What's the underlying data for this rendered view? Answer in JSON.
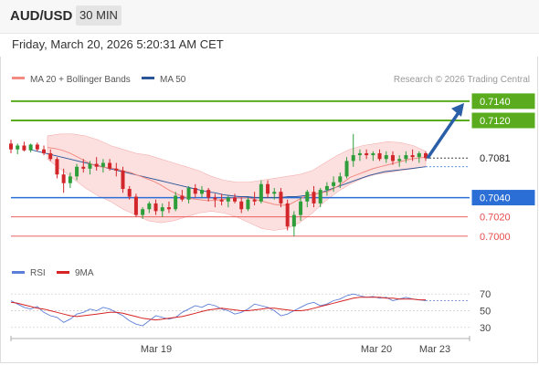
{
  "header": {
    "symbol": "AUD/USD",
    "timeframe": "30 MIN",
    "datetime": "Friday, March 20, 2026 5:20:31 AM CET"
  },
  "legend": {
    "ma20_label": "MA 20 + Bollinger Bands",
    "ma50_label": "MA 50",
    "ma20_color": "#f28b82",
    "ma50_color": "#2a5599",
    "credit": "Research © 2026 Trading Central"
  },
  "chart_data": [
    {
      "type": "candlestick",
      "title": "",
      "y_range": [
        0.698,
        0.7155
      ],
      "x_ticks": [
        "Mar 19",
        "Mar 20",
        "Mar 23"
      ],
      "levels": [
        {
          "value": "0.7140",
          "color": "#5aab1e",
          "kind": "resistance"
        },
        {
          "value": "0.7120",
          "color": "#5aab1e",
          "kind": "resistance"
        },
        {
          "value": "0.7081",
          "color": "#222222",
          "kind": "last"
        },
        {
          "value": "0.7040",
          "color": "#2b6fd6",
          "kind": "pivot"
        },
        {
          "value": "0.7020",
          "color": "#e84c4c",
          "kind": "support"
        },
        {
          "value": "0.7000",
          "color": "#e84c4c",
          "kind": "support"
        }
      ],
      "candles": [
        [
          0.7096,
          0.71,
          0.7086,
          0.709
        ],
        [
          0.709,
          0.7096,
          0.7085,
          0.7094
        ],
        [
          0.7094,
          0.7098,
          0.7088,
          0.7089
        ],
        [
          0.7089,
          0.7096,
          0.7087,
          0.7095
        ],
        [
          0.7095,
          0.7097,
          0.7088,
          0.709
        ],
        [
          0.709,
          0.7094,
          0.7084,
          0.7086
        ],
        [
          0.7086,
          0.709,
          0.7078,
          0.708
        ],
        [
          0.708,
          0.7082,
          0.706,
          0.7064
        ],
        [
          0.7064,
          0.707,
          0.7045,
          0.7055
        ],
        [
          0.7055,
          0.7066,
          0.705,
          0.7062
        ],
        [
          0.7062,
          0.7075,
          0.7058,
          0.7072
        ],
        [
          0.7072,
          0.708,
          0.7066,
          0.707
        ],
        [
          0.707,
          0.7078,
          0.7064,
          0.7075
        ],
        [
          0.7075,
          0.7082,
          0.7068,
          0.7072
        ],
        [
          0.7072,
          0.708,
          0.7066,
          0.7076
        ],
        [
          0.7076,
          0.708,
          0.7068,
          0.707
        ],
        [
          0.707,
          0.7076,
          0.7062,
          0.7068
        ],
        [
          0.7068,
          0.7072,
          0.7045,
          0.7049
        ],
        [
          0.7049,
          0.7052,
          0.7038,
          0.7041
        ],
        [
          0.7041,
          0.7044,
          0.702,
          0.7022
        ],
        [
          0.7022,
          0.703,
          0.7018,
          0.7028
        ],
        [
          0.7028,
          0.7036,
          0.7024,
          0.7034
        ],
        [
          0.7034,
          0.7038,
          0.7022,
          0.7026
        ],
        [
          0.7026,
          0.7034,
          0.702,
          0.703
        ],
        [
          0.703,
          0.7036,
          0.7024,
          0.7028
        ],
        [
          0.7028,
          0.7046,
          0.7026,
          0.7042
        ],
        [
          0.7042,
          0.7048,
          0.7036,
          0.7038
        ],
        [
          0.7038,
          0.7052,
          0.7034,
          0.705
        ],
        [
          0.705,
          0.7054,
          0.704,
          0.7044
        ],
        [
          0.7044,
          0.7052,
          0.704,
          0.7048
        ],
        [
          0.7048,
          0.705,
          0.7036,
          0.704
        ],
        [
          0.704,
          0.7044,
          0.703,
          0.7038
        ],
        [
          0.7038,
          0.7044,
          0.7032,
          0.7036
        ],
        [
          0.7036,
          0.7042,
          0.703,
          0.704
        ],
        [
          0.704,
          0.7044,
          0.7034,
          0.7036
        ],
        [
          0.7036,
          0.704,
          0.7024,
          0.7028
        ],
        [
          0.7028,
          0.704,
          0.7026,
          0.7038
        ],
        [
          0.7038,
          0.7046,
          0.7032,
          0.7036
        ],
        [
          0.7036,
          0.7058,
          0.7034,
          0.7054
        ],
        [
          0.7054,
          0.7058,
          0.704,
          0.7044
        ],
        [
          0.7044,
          0.705,
          0.7038,
          0.7046
        ],
        [
          0.7046,
          0.705,
          0.703,
          0.7034
        ],
        [
          0.7034,
          0.7038,
          0.7006,
          0.701
        ],
        [
          0.701,
          0.7026,
          0.7,
          0.7022
        ],
        [
          0.7022,
          0.704,
          0.7016,
          0.7036
        ],
        [
          0.7036,
          0.7048,
          0.703,
          0.7046
        ],
        [
          0.7046,
          0.7052,
          0.703,
          0.7034
        ],
        [
          0.7034,
          0.705,
          0.703,
          0.7048
        ],
        [
          0.7048,
          0.7056,
          0.7042,
          0.7052
        ],
        [
          0.7052,
          0.7062,
          0.7046,
          0.7056
        ],
        [
          0.7056,
          0.7066,
          0.705,
          0.7062
        ],
        [
          0.7062,
          0.7082,
          0.706,
          0.7078
        ],
        [
          0.7078,
          0.7106,
          0.7072,
          0.7084
        ],
        [
          0.7084,
          0.709,
          0.7078,
          0.7086
        ],
        [
          0.7086,
          0.709,
          0.708,
          0.7084
        ],
        [
          0.7084,
          0.7088,
          0.7078,
          0.7086
        ],
        [
          0.7086,
          0.709,
          0.7078,
          0.708
        ],
        [
          0.708,
          0.7088,
          0.7076,
          0.7084
        ],
        [
          0.7084,
          0.7088,
          0.7074,
          0.7078
        ],
        [
          0.7078,
          0.7084,
          0.7072,
          0.708
        ],
        [
          0.708,
          0.7088,
          0.7076,
          0.7084
        ],
        [
          0.7084,
          0.709,
          0.7078,
          0.7082
        ],
        [
          0.7082,
          0.7088,
          0.7076,
          0.7086
        ],
        [
          0.7086,
          0.7088,
          0.7078,
          0.7081
        ]
      ],
      "ma20": [
        0.7092,
        0.7091,
        0.7089,
        0.7086,
        0.7082,
        0.7078,
        0.7074,
        0.7072,
        0.7071,
        0.707,
        0.7068,
        0.7066,
        0.7063,
        0.706,
        0.7057,
        0.7053,
        0.7048,
        0.7044,
        0.7041,
        0.7039,
        0.7038,
        0.7037,
        0.7037,
        0.7038,
        0.7039,
        0.704,
        0.704,
        0.7039,
        0.7037,
        0.7035,
        0.7033,
        0.7032,
        0.7033,
        0.7037,
        0.7041,
        0.7043,
        0.7045,
        0.7046,
        0.705,
        0.7055,
        0.7061,
        0.7064,
        0.7067,
        0.707,
        0.7072,
        0.7074,
        0.7076,
        0.7078,
        0.708,
        0.7081,
        0.7082
      ],
      "ma50": [
        0.709,
        0.7088,
        0.7086,
        0.7084,
        0.7082,
        0.708,
        0.7078,
        0.7076,
        0.7074,
        0.7072,
        0.707,
        0.7068,
        0.7066,
        0.7064,
        0.7062,
        0.706,
        0.7058,
        0.7056,
        0.7054,
        0.7052,
        0.705,
        0.7048,
        0.7046,
        0.7045,
        0.7043,
        0.7042,
        0.7041,
        0.7041,
        0.704,
        0.704,
        0.704,
        0.704,
        0.7041,
        0.7041,
        0.7042,
        0.7043,
        0.7045,
        0.7048,
        0.7051,
        0.7054,
        0.7057,
        0.706,
        0.7063,
        0.7065,
        0.7067,
        0.7068,
        0.7069,
        0.707,
        0.7071,
        0.7072
      ],
      "bb_upper": [
        0.7104,
        0.7106,
        0.7106,
        0.7104,
        0.71,
        0.7094,
        0.709,
        0.7086,
        0.7084,
        0.708,
        0.7076,
        0.7072,
        0.7068,
        0.7062,
        0.7058,
        0.7056,
        0.7056,
        0.7058,
        0.706,
        0.7062,
        0.7064,
        0.7068,
        0.7076,
        0.7084,
        0.709,
        0.7094,
        0.7096,
        0.7098,
        0.7097,
        0.7094,
        0.7088
      ],
      "bb_lower": [
        0.708,
        0.707,
        0.706,
        0.705,
        0.7042,
        0.7036,
        0.7028,
        0.7022,
        0.7016,
        0.7014,
        0.7016,
        0.702,
        0.7024,
        0.7026,
        0.7024,
        0.702,
        0.7014,
        0.7008,
        0.7006,
        0.7008,
        0.7014,
        0.7024,
        0.7036,
        0.7046,
        0.7054,
        0.706,
        0.7064,
        0.7066,
        0.7068,
        0.707,
        0.7072
      ],
      "forecast_arrow": {
        "from": 0.7081,
        "to": 0.714
      }
    },
    {
      "type": "line",
      "title": "",
      "series": [
        {
          "name": "RSI",
          "color": "#5b7fd6",
          "values": [
            62,
            58,
            54,
            52,
            55,
            48,
            44,
            42,
            36,
            40,
            46,
            48,
            52,
            50,
            54,
            52,
            48,
            44,
            38,
            34,
            32,
            38,
            44,
            42,
            40,
            42,
            48,
            52,
            56,
            54,
            58,
            56,
            52,
            50,
            46,
            48,
            52,
            58,
            56,
            54,
            50,
            44,
            46,
            50,
            54,
            58,
            60,
            56,
            58,
            62,
            64,
            68,
            70,
            68,
            66,
            67,
            65,
            66,
            62,
            64,
            66,
            64,
            63,
            62
          ]
        },
        {
          "name": "9MA",
          "color": "#d62424",
          "values": [
            60,
            59,
            57,
            55,
            53,
            52,
            50,
            48,
            46,
            44,
            43,
            44,
            45,
            46,
            47,
            48,
            48,
            47,
            45,
            43,
            41,
            40,
            39,
            40,
            41,
            42,
            43,
            45,
            47,
            49,
            51,
            52,
            53,
            52,
            51,
            50,
            50,
            51,
            52,
            53,
            53,
            52,
            51,
            50,
            50,
            51,
            53,
            55,
            57,
            59,
            61,
            63,
            65,
            66,
            66,
            66,
            66,
            65,
            65,
            64,
            64,
            64,
            63,
            63
          ]
        }
      ],
      "y_ticks": [
        "70",
        "50",
        "30"
      ],
      "y_range": [
        20,
        80
      ]
    }
  ]
}
